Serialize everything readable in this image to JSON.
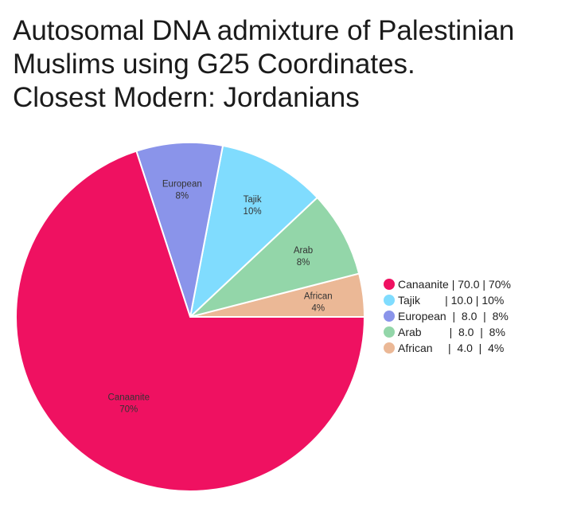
{
  "title_lines": [
    "Autosomal DNA admixture of Palestinian",
    "Muslims using G25 Coordinates.",
    "Closest Modern: Jordanians"
  ],
  "chart_data": {
    "type": "pie",
    "title": "Autosomal DNA admixture of Palestinian Muslims using G25 Coordinates. Closest Modern: Jordanians",
    "unit": "%",
    "slices": [
      {
        "label": "Canaanite",
        "value": 70.0,
        "percent_label": "70%",
        "value_label": "70.0",
        "color": "#ef1161"
      },
      {
        "label": "Tajik",
        "value": 10.0,
        "percent_label": "10%",
        "value_label": "10.0",
        "color": "#80dcfe"
      },
      {
        "label": "European",
        "value": 8.0,
        "percent_label": "8%",
        "value_label": "8.0",
        "color": "#8a94ea"
      },
      {
        "label": "Arab",
        "value": 8.0,
        "percent_label": "8%",
        "value_label": "8.0",
        "color": "#93d6a9"
      },
      {
        "label": "African",
        "value": 4.0,
        "percent_label": "4%",
        "value_label": "4.0",
        "color": "#ebb896"
      }
    ],
    "legend_position": "right",
    "legend_entries": [
      {
        "slice": 0,
        "text": "Canaanite | 70.0 | 70%"
      },
      {
        "slice": 1,
        "text": "Tajik        | 10.0 | 10%"
      },
      {
        "slice": 2,
        "text": "European  |  8.0  |  8%"
      },
      {
        "slice": 3,
        "text": "Arab         |  8.0  |  8%"
      },
      {
        "slice": 4,
        "text": "African     |  4.0  |  4%"
      }
    ]
  }
}
